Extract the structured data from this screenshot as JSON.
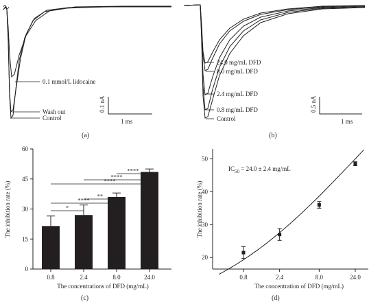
{
  "chart_data": [
    {
      "panel": "(a)",
      "type": "line",
      "traces": [
        "0.1 mmol/L lidocaine",
        "Wash out",
        "Control"
      ],
      "scale_bar": {
        "y": "0.1 nA",
        "x": "1 ms"
      }
    },
    {
      "panel": "(b)",
      "type": "line",
      "traces": [
        "24.0 mg/mL DFD",
        "8.0 mg/mL DFD",
        "2.4 mg/mL DFD",
        "0.8 mg/mL DFD",
        "Control"
      ],
      "scale_bar": {
        "y": "0.5 nA",
        "x": "1 ms"
      }
    },
    {
      "panel": "(c)",
      "type": "bar",
      "categories": [
        "0.8",
        "2.4",
        "8.0",
        "24.0"
      ],
      "values": [
        21.5,
        27,
        36,
        48.5
      ],
      "errors": [
        5,
        5,
        2,
        1.5
      ],
      "xlabel": "The concentrations of DFD (mg/mL)",
      "ylabel": "The inhibition rate (%)",
      "yticks": [
        "0",
        "15",
        "30",
        "45",
        "60"
      ],
      "ylim": [
        0,
        60
      ],
      "significance": [
        {
          "from": "0.8",
          "to": "2.4",
          "label": "*"
        },
        {
          "from": "0.8",
          "to": "8.0",
          "label": "****"
        },
        {
          "from": "2.4",
          "to": "8.0",
          "label": "**"
        },
        {
          "from": "0.8",
          "to": "24.0",
          "label": "****"
        },
        {
          "from": "2.4",
          "to": "24.0",
          "label": "****"
        },
        {
          "from": "8.0",
          "to": "24.0",
          "label": "****"
        }
      ]
    },
    {
      "panel": "(d)",
      "type": "scatter",
      "x": [
        0.8,
        2.4,
        8.0,
        24.0
      ],
      "y": [
        21.5,
        27,
        36,
        48.5
      ],
      "errors": [
        1.8,
        1.8,
        1.0,
        0.6
      ],
      "xticks": [
        "0.8",
        "2.4",
        "8.0",
        "24.0"
      ],
      "yticks": [
        "20",
        "30",
        "40",
        "50"
      ],
      "ylim": [
        16.5,
        53
      ],
      "xscale": "log",
      "xlabel": "The concentration of DFD (mg/mL)",
      "ylabel": "The inhibition rate (%)",
      "annotation": {
        "ic": "IC",
        "sub": "50",
        "rest": " = 24.0 ± 2.4 mg/mL"
      }
    }
  ]
}
